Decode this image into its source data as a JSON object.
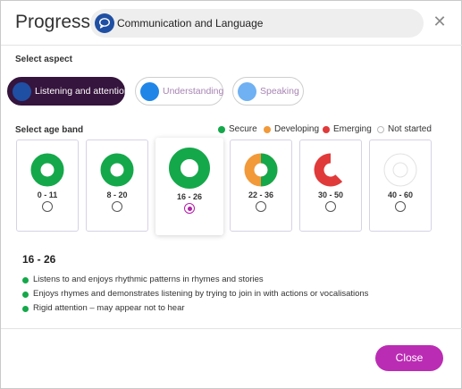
{
  "header": {
    "title": "Progress",
    "area_label": "Communication and Language",
    "close_icon": "close-icon"
  },
  "aspect_section": {
    "label": "Select aspect",
    "aspects": [
      {
        "label": "Listening and attention",
        "selected": true,
        "color": "#1f4fa3"
      },
      {
        "label": "Understanding",
        "selected": false,
        "color": "#1f86e8"
      },
      {
        "label": "Speaking",
        "selected": false,
        "color": "#6fb1f2"
      }
    ]
  },
  "age_section": {
    "label": "Select age band",
    "legend": [
      {
        "label": "Secure",
        "color": "#14a84a"
      },
      {
        "label": "Developing",
        "color": "#f2993a"
      },
      {
        "label": "Emerging",
        "color": "#e03a3a"
      },
      {
        "label": "Not started",
        "color": "#ffffff"
      }
    ],
    "bands": [
      {
        "range": "0 - 11",
        "status": "secure",
        "selected": false
      },
      {
        "range": "8 - 20",
        "status": "secure",
        "selected": false
      },
      {
        "range": "16 - 26",
        "status": "secure",
        "selected": true
      },
      {
        "range": "22 - 36",
        "status": "half secure, half developing",
        "selected": false
      },
      {
        "range": "30 - 50",
        "status": "emerging, partial",
        "selected": false
      },
      {
        "range": "40 - 60",
        "status": "not started",
        "selected": false
      }
    ]
  },
  "detail": {
    "title": "16 - 26",
    "statements": [
      "Listens to and enjoys rhythmic patterns in rhymes and stories",
      "Enjoys rhymes and demonstrates listening by trying to join in with actions or vocalisations",
      "Rigid attention – may appear not to hear"
    ]
  },
  "footer": {
    "close_label": "Close"
  },
  "colors": {
    "accent": "#bb2cb4",
    "active_aspect": "#35143d",
    "secure": "#14a84a",
    "developing": "#f2993a",
    "emerging": "#e03a3a"
  }
}
